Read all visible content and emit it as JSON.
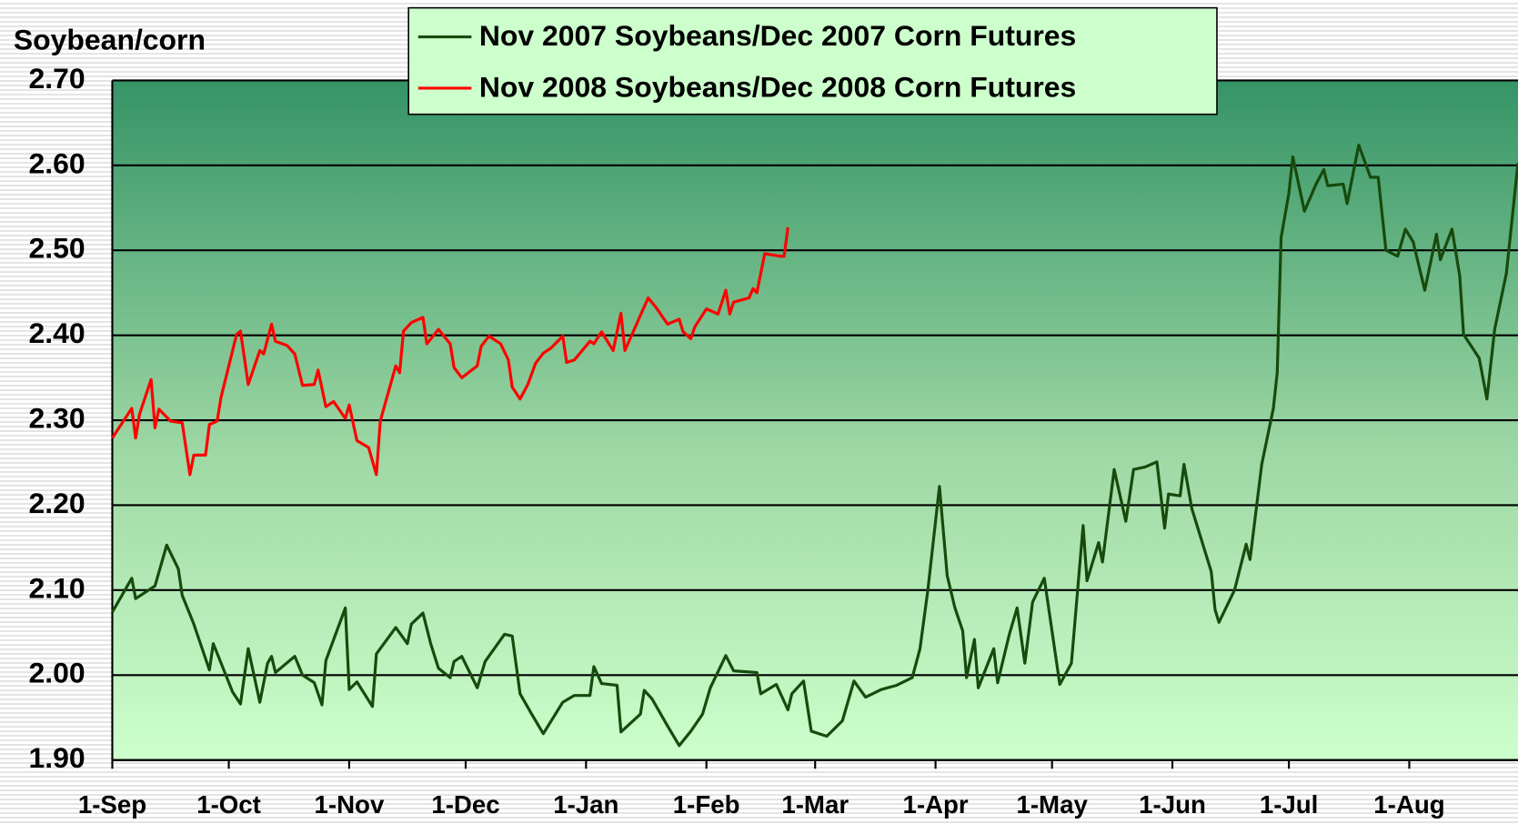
{
  "chart_data": {
    "type": "line",
    "y_label": "Soybean/corn",
    "ylim": [
      1.9,
      2.7
    ],
    "yticks": [
      {
        "value": 1.9,
        "label": "1.90"
      },
      {
        "value": 2.0,
        "label": "2.00"
      },
      {
        "value": 2.1,
        "label": "2.10"
      },
      {
        "value": 2.2,
        "label": "2.20"
      },
      {
        "value": 2.3,
        "label": "2.30"
      },
      {
        "value": 2.4,
        "label": "2.40"
      },
      {
        "value": 2.5,
        "label": "2.50"
      },
      {
        "value": 2.6,
        "label": "2.60"
      },
      {
        "value": 2.7,
        "label": "2.70"
      }
    ],
    "xlim": [
      "1-Sep",
      "29-Aug"
    ],
    "xticks": [
      "1-Sep",
      "1-Oct",
      "1-Nov",
      "1-Dec",
      "1-Jan",
      "1-Feb",
      "1-Mar",
      "1-Apr",
      "1-May",
      "1-Jun",
      "1-Jul",
      "1-Aug"
    ],
    "grid": true,
    "legend": "top",
    "series": [
      {
        "name": "Nov 2007 Soybeans/Dec 2007 Corn Futures",
        "color": "#174a0c",
        "x": [
          "1-Sep",
          "6-Sep",
          "7-Sep",
          "12-Sep",
          "15-Sep",
          "18-Sep",
          "19-Sep",
          "22-Sep",
          "26-Sep",
          "27-Sep",
          "2-Oct",
          "4-Oct",
          "6-Oct",
          "9-Oct",
          "11-Oct",
          "12-Oct",
          "13-Oct",
          "18-Oct",
          "20-Oct",
          "23-Oct",
          "25-Oct",
          "26-Oct",
          "31-Oct",
          "1-Nov",
          "3-Nov",
          "7-Nov",
          "8-Nov",
          "13-Nov",
          "16-Nov",
          "17-Nov",
          "20-Nov",
          "22-Nov",
          "24-Nov",
          "27-Nov",
          "28-Nov",
          "30-Nov",
          "4-Dec",
          "6-Dec",
          "11-Dec",
          "13-Dec",
          "15-Dec",
          "18-Dec",
          "21-Dec",
          "26-Dec",
          "29-Dec",
          "2-Jan",
          "3-Jan",
          "5-Jan",
          "9-Jan",
          "10-Jan",
          "15-Jan",
          "16-Jan",
          "18-Jan",
          "22-Jan",
          "25-Jan",
          "28-Jan",
          "31-Jan",
          "2-Feb",
          "6-Feb",
          "8-Feb",
          "14-Feb",
          "15-Feb",
          "19-Feb",
          "22-Feb",
          "23-Feb",
          "26-Feb",
          "28-Feb",
          "4-Mar",
          "8-Mar",
          "11-Mar",
          "14-Mar",
          "18-Mar",
          "22-Mar",
          "26-Mar",
          "28-Mar",
          "30-Mar",
          "2-Apr",
          "4-Apr",
          "6-Apr",
          "8-Apr",
          "9-Apr",
          "11-Apr",
          "12-Apr",
          "16-Apr",
          "17-Apr",
          "20-Apr",
          "22-Apr",
          "24-Apr",
          "26-Apr",
          "29-Apr",
          "3-May",
          "6-May",
          "9-May",
          "10-May",
          "13-May",
          "14-May",
          "17-May",
          "20-May",
          "22-May",
          "25-May",
          "28-May",
          "30-May",
          "31-May",
          "3-Jun",
          "4-Jun",
          "6-Jun",
          "11-Jun",
          "12-Jun",
          "13-Jun",
          "17-Jun",
          "20-Jun",
          "21-Jun",
          "24-Jun",
          "27-Jun",
          "28-Jun",
          "29-Jun",
          "1-Jul",
          "2-Jul",
          "5-Jul",
          "8-Jul",
          "10-Jul",
          "11-Jul",
          "15-Jul",
          "16-Jul",
          "19-Jul",
          "22-Jul",
          "24-Jul",
          "26-Jul",
          "29-Jul",
          "31-Jul",
          "2-Aug",
          "5-Aug",
          "8-Aug",
          "9-Aug",
          "12-Aug",
          "14-Aug",
          "15-Aug",
          "19-Aug",
          "21-Aug",
          "23-Aug",
          "26-Aug",
          "29-Aug"
        ],
        "values": [
          2.074,
          2.114,
          2.09,
          2.105,
          2.153,
          2.125,
          2.094,
          2.06,
          2.006,
          2.037,
          1.98,
          1.966,
          2.031,
          1.968,
          2.014,
          2.022,
          2.003,
          2.022,
          2.0,
          1.991,
          1.965,
          2.017,
          2.079,
          1.983,
          1.992,
          1.963,
          2.025,
          2.056,
          2.037,
          2.06,
          2.073,
          2.037,
          2.008,
          1.997,
          2.016,
          2.022,
          1.985,
          2.016,
          2.048,
          2.046,
          1.978,
          1.954,
          1.931,
          1.968,
          1.976,
          1.976,
          2.01,
          1.99,
          1.988,
          1.933,
          1.954,
          1.982,
          1.972,
          1.94,
          1.917,
          1.934,
          1.954,
          1.985,
          2.023,
          2.005,
          2.003,
          1.978,
          1.989,
          1.959,
          1.978,
          1.993,
          1.934,
          1.928,
          1.946,
          1.993,
          1.974,
          1.983,
          1.988,
          1.997,
          2.031,
          2.099,
          2.222,
          2.117,
          2.079,
          2.052,
          1.997,
          2.042,
          1.985,
          2.031,
          1.991,
          2.048,
          2.079,
          2.014,
          2.086,
          2.114,
          1.989,
          2.014,
          2.176,
          2.111,
          2.156,
          2.133,
          2.242,
          2.181,
          2.242,
          2.245,
          2.251,
          2.173,
          2.213,
          2.211,
          2.248,
          2.196,
          2.122,
          2.077,
          2.062,
          2.1,
          2.154,
          2.136,
          2.248,
          2.314,
          2.356,
          2.515,
          2.567,
          2.61,
          2.546,
          2.578,
          2.595,
          2.576,
          2.578,
          2.555,
          2.624,
          2.586,
          2.586,
          2.5,
          2.493,
          2.525,
          2.51,
          2.453,
          2.519,
          2.489,
          2.525,
          2.47,
          2.401,
          2.373,
          2.325,
          2.407,
          2.473,
          2.603
        ]
      },
      {
        "name": "Nov 2008 Soybeans/Dec 2008 Corn Futures",
        "color": "#ff0000",
        "x": [
          "1-Sep",
          "6-Sep",
          "7-Sep",
          "8-Sep",
          "11-Sep",
          "12-Sep",
          "13-Sep",
          "16-Sep",
          "19-Sep",
          "21-Sep",
          "22-Sep",
          "25-Sep",
          "26-Sep",
          "28-Sep",
          "29-Sep",
          "3-Oct",
          "4-Oct",
          "6-Oct",
          "9-Oct",
          "10-Oct",
          "12-Oct",
          "13-Oct",
          "16-Oct",
          "18-Oct",
          "20-Oct",
          "23-Oct",
          "24-Oct",
          "26-Oct",
          "28-Oct",
          "31-Oct",
          "1-Nov",
          "3-Nov",
          "6-Nov",
          "8-Nov",
          "9-Nov",
          "13-Nov",
          "14-Nov",
          "15-Nov",
          "17-Nov",
          "20-Nov",
          "21-Nov",
          "24-Nov",
          "27-Nov",
          "28-Nov",
          "30-Nov",
          "4-Dec",
          "5-Dec",
          "7-Dec",
          "10-Dec",
          "12-Dec",
          "13-Dec",
          "15-Dec",
          "17-Dec",
          "19-Dec",
          "21-Dec",
          "23-Dec",
          "26-Dec",
          "27-Dec",
          "29-Dec",
          "2-Jan",
          "3-Jan",
          "5-Jan",
          "8-Jan",
          "10-Jan",
          "11-Jan",
          "17-Jan",
          "19-Jan",
          "22-Jan",
          "25-Jan",
          "26-Jan",
          "28-Jan",
          "29-Jan",
          "1-Feb",
          "4-Feb",
          "6-Feb",
          "7-Feb",
          "8-Feb",
          "12-Feb",
          "13-Feb",
          "14-Feb",
          "16-Feb",
          "20-Feb",
          "21-Feb",
          "22-Feb"
        ],
        "values": [
          2.279,
          2.314,
          2.279,
          2.307,
          2.348,
          2.291,
          2.313,
          2.299,
          2.297,
          2.236,
          2.259,
          2.259,
          2.295,
          2.299,
          2.327,
          2.401,
          2.405,
          2.342,
          2.382,
          2.378,
          2.413,
          2.393,
          2.388,
          2.378,
          2.341,
          2.342,
          2.359,
          2.316,
          2.322,
          2.302,
          2.318,
          2.276,
          2.268,
          2.236,
          2.299,
          2.364,
          2.356,
          2.405,
          2.415,
          2.421,
          2.39,
          2.407,
          2.39,
          2.362,
          2.35,
          2.364,
          2.387,
          2.399,
          2.39,
          2.371,
          2.339,
          2.325,
          2.342,
          2.367,
          2.379,
          2.385,
          2.399,
          2.368,
          2.371,
          2.393,
          2.39,
          2.404,
          2.382,
          2.426,
          2.382,
          2.444,
          2.433,
          2.413,
          2.419,
          2.404,
          2.396,
          2.41,
          2.431,
          2.425,
          2.453,
          2.425,
          2.439,
          2.444,
          2.455,
          2.45,
          2.496,
          2.493,
          2.493,
          2.527
        ]
      }
    ]
  }
}
